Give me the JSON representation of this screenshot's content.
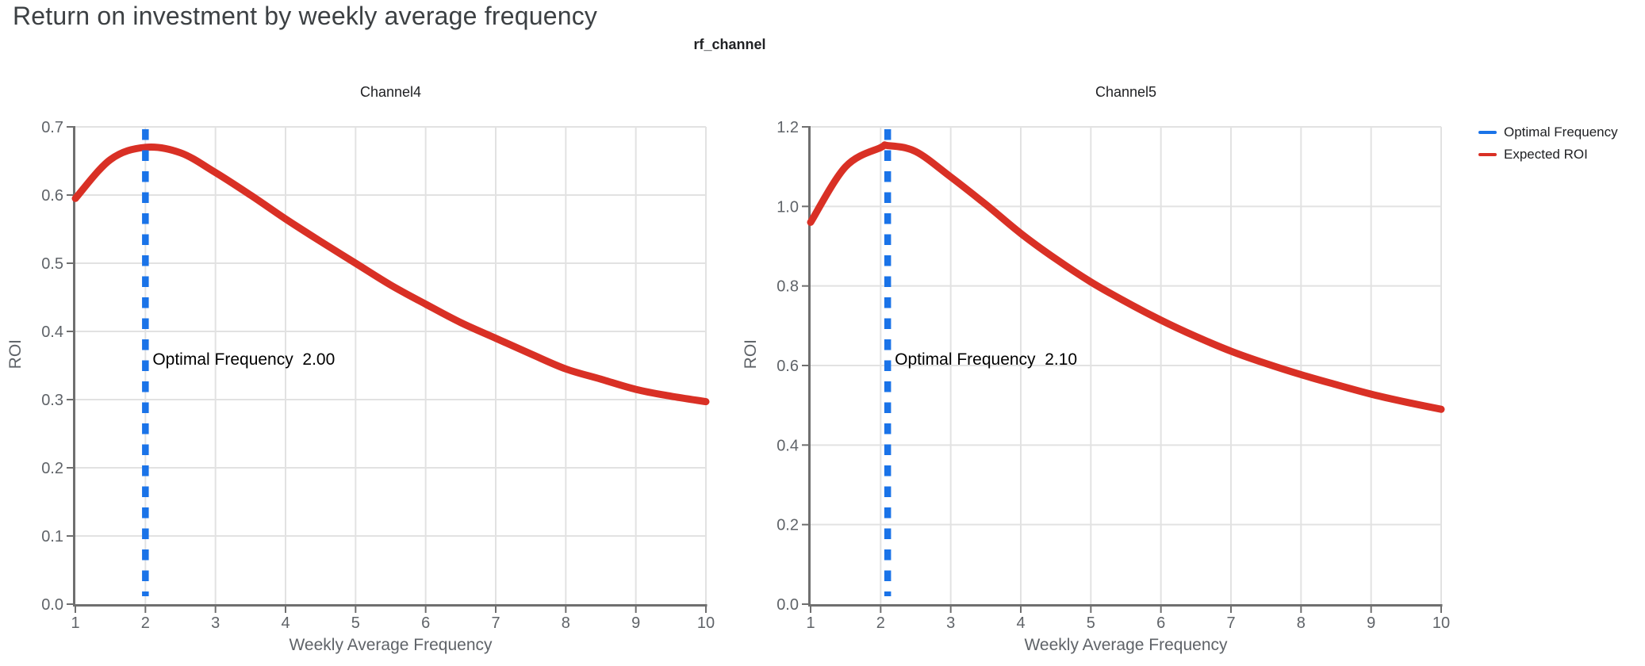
{
  "page_title": "Return on investment by weekly average frequency",
  "figure_title": "rf_channel",
  "colors": {
    "optimal_frequency_blue": "#1a73e8",
    "expected_roi_red": "#d93025",
    "axis_line": "#6f6f6f",
    "gridline": "#e2e2e2",
    "tick_label": "#5f6368",
    "title_text": "#3c4043"
  },
  "legend": {
    "position": "top-right",
    "items": [
      {
        "label": "Optimal Frequency",
        "color": "#1a73e8",
        "style": "solid-line"
      },
      {
        "label": "Expected ROI",
        "color": "#d93025",
        "style": "solid-line"
      }
    ]
  },
  "chart_data": [
    {
      "type": "line",
      "title": "Channel4",
      "xlabel": "Weekly Average Frequency",
      "ylabel": "ROI",
      "xlim": [
        1,
        10
      ],
      "ylim": [
        0,
        0.7
      ],
      "grid": true,
      "xtick_values": [
        1,
        2,
        3,
        4,
        5,
        6,
        7,
        8,
        9,
        10
      ],
      "xtick_labels": [
        "1",
        "2",
        "3",
        "4",
        "5",
        "6",
        "7",
        "8",
        "9",
        "10"
      ],
      "ytick_values": [
        0,
        0.1,
        0.2,
        0.3,
        0.4,
        0.5,
        0.6,
        0.7
      ],
      "ytick_labels": [
        "0.0",
        "0.1",
        "0.2",
        "0.3",
        "0.4",
        "0.5",
        "0.6",
        "0.7"
      ],
      "series": [
        {
          "name": "Expected ROI",
          "color": "#d93025",
          "x": [
            1,
            1.5,
            2,
            2.5,
            3,
            3.5,
            4,
            4.5,
            5,
            5.5,
            6,
            6.5,
            7,
            7.5,
            8,
            8.5,
            9,
            9.5,
            10
          ],
          "y": [
            0.595,
            0.652,
            0.67,
            0.662,
            0.633,
            0.6,
            0.565,
            0.532,
            0.5,
            0.468,
            0.44,
            0.413,
            0.39,
            0.367,
            0.345,
            0.33,
            0.315,
            0.305,
            0.297
          ]
        }
      ],
      "vline": {
        "name": "Optimal Frequency",
        "x": 2.0,
        "color": "#1a73e8",
        "annotation": "Optimal Frequency  2.00"
      }
    },
    {
      "type": "line",
      "title": "Channel5",
      "xlabel": "Weekly Average Frequency",
      "ylabel": "ROI",
      "xlim": [
        1,
        10
      ],
      "ylim": [
        0,
        1.2
      ],
      "grid": true,
      "xtick_values": [
        1,
        2,
        3,
        4,
        5,
        6,
        7,
        8,
        9,
        10
      ],
      "xtick_labels": [
        "1",
        "2",
        "3",
        "4",
        "5",
        "6",
        "7",
        "8",
        "9",
        "10"
      ],
      "ytick_values": [
        0,
        0.2,
        0.4,
        0.6,
        0.8,
        1.0,
        1.2
      ],
      "ytick_labels": [
        "0.0",
        "0.2",
        "0.4",
        "0.6",
        "0.8",
        "1.0",
        "1.2"
      ],
      "series": [
        {
          "name": "Expected ROI",
          "color": "#d93025",
          "x": [
            1,
            1.5,
            2,
            2.1,
            2.5,
            3,
            3.5,
            4,
            4.5,
            5,
            5.5,
            6,
            6.5,
            7,
            7.5,
            8,
            8.5,
            9,
            9.5,
            10
          ],
          "y": [
            0.96,
            1.1,
            1.148,
            1.153,
            1.138,
            1.074,
            1.005,
            0.932,
            0.868,
            0.81,
            0.76,
            0.714,
            0.673,
            0.636,
            0.605,
            0.577,
            0.552,
            0.528,
            0.508,
            0.49
          ]
        }
      ],
      "vline": {
        "name": "Optimal Frequency",
        "x": 2.1,
        "color": "#1a73e8",
        "annotation": "Optimal Frequency  2.10"
      }
    }
  ]
}
